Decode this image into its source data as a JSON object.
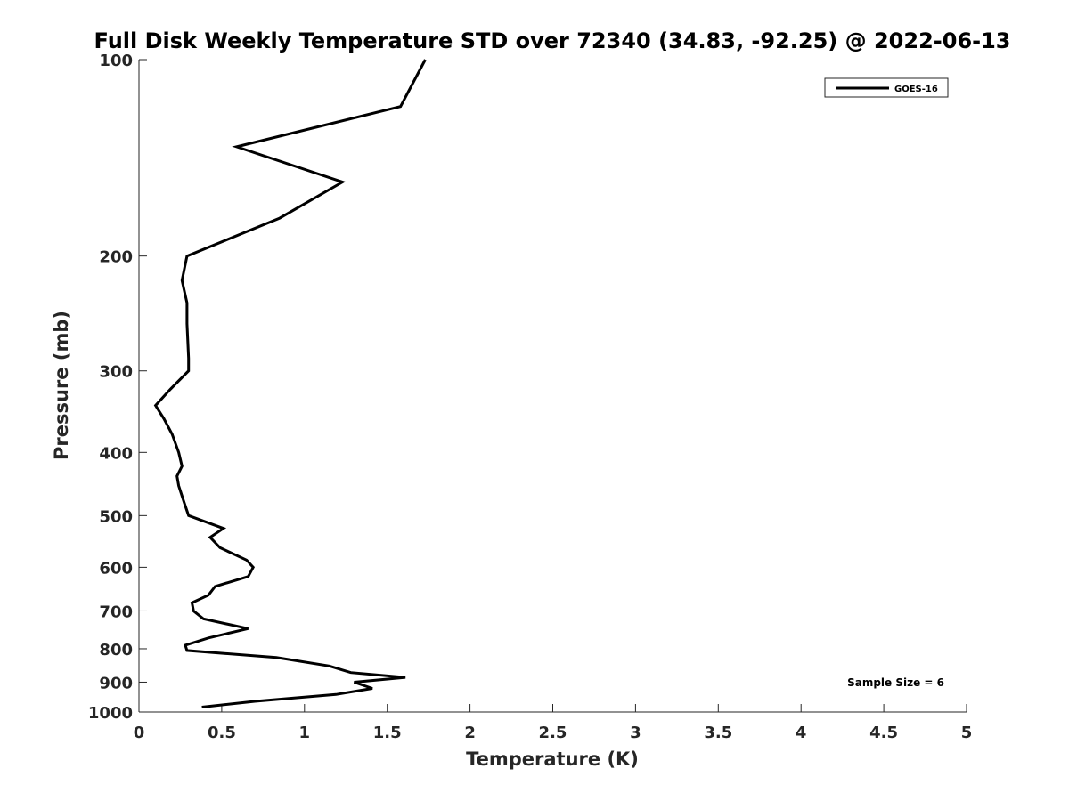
{
  "chart_data": {
    "type": "line",
    "title": "Full Disk Weekly Temperature STD over 72340 (34.83, -92.25) @ 2022-06-13",
    "xlabel": "Temperature (K)",
    "ylabel": "Pressure (mb)",
    "xlim": [
      0,
      5
    ],
    "ylim": [
      1000,
      100
    ],
    "y_scale": "log",
    "y_reversed": true,
    "x_ticks": [
      "0",
      "0.5",
      "1",
      "1.5",
      "2",
      "2.5",
      "3",
      "3.5",
      "4",
      "4.5",
      "5"
    ],
    "y_ticks": [
      "100",
      "200",
      "300",
      "400",
      "500",
      "600",
      "700",
      "800",
      "900",
      "1000"
    ],
    "grid": false,
    "legend": {
      "placement": "top-right",
      "entries": [
        "GOES-16"
      ]
    },
    "annotation": "Sample Size = 6",
    "line_color": "#000000",
    "series": [
      {
        "name": "GOES-16",
        "points": [
          [
            1.73,
            100
          ],
          [
            1.58,
            118
          ],
          [
            0.59,
            136
          ],
          [
            1.23,
            154
          ],
          [
            0.85,
            175
          ],
          [
            0.29,
            200
          ],
          [
            0.26,
            218
          ],
          [
            0.29,
            236
          ],
          [
            0.29,
            254
          ],
          [
            0.3,
            287
          ],
          [
            0.3,
            300
          ],
          [
            0.19,
            320
          ],
          [
            0.1,
            339
          ],
          [
            0.15,
            355
          ],
          [
            0.2,
            375
          ],
          [
            0.24,
            400
          ],
          [
            0.26,
            420
          ],
          [
            0.23,
            435
          ],
          [
            0.24,
            450
          ],
          [
            0.27,
            475
          ],
          [
            0.3,
            500
          ],
          [
            0.51,
            523
          ],
          [
            0.43,
            540
          ],
          [
            0.49,
            560
          ],
          [
            0.65,
            585
          ],
          [
            0.69,
            600
          ],
          [
            0.66,
            620
          ],
          [
            0.46,
            642
          ],
          [
            0.42,
            662
          ],
          [
            0.32,
            680
          ],
          [
            0.33,
            700
          ],
          [
            0.39,
            720
          ],
          [
            0.66,
            745
          ],
          [
            0.42,
            770
          ],
          [
            0.28,
            790
          ],
          [
            0.29,
            805
          ],
          [
            0.83,
            825
          ],
          [
            1.15,
            850
          ],
          [
            1.28,
            870
          ],
          [
            1.61,
            885
          ],
          [
            1.3,
            900
          ],
          [
            1.41,
            920
          ],
          [
            1.19,
            940
          ],
          [
            0.7,
            963
          ],
          [
            0.38,
            983
          ]
        ]
      }
    ]
  }
}
